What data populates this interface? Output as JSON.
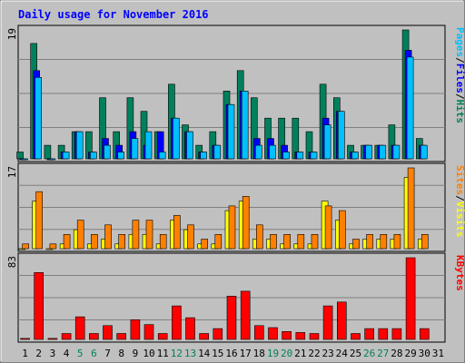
{
  "colors": {
    "background": "#c0c0c0",
    "plot_bg": "#c0c0c0",
    "grid": "#808080",
    "title": "#0000ff",
    "hits": "#00805c",
    "files": "#0000ff",
    "pages": "#00c0ff",
    "visits": "#ffff00",
    "sites": "#ff8000",
    "kbytes": "#ff0000",
    "weekend": "#00805c",
    "weekday": "#000000"
  },
  "chart_data": {
    "type": "bar",
    "title": "Daily usage for November 2016",
    "categories": [
      "1",
      "2",
      "3",
      "4",
      "5",
      "6",
      "7",
      "8",
      "9",
      "10",
      "11",
      "12",
      "13",
      "14",
      "15",
      "16",
      "17",
      "18",
      "19",
      "20",
      "21",
      "22",
      "23",
      "24",
      "25",
      "26",
      "27",
      "28",
      "29",
      "30",
      "31"
    ],
    "weekend_days": [
      "5",
      "6",
      "12",
      "13",
      "19",
      "20",
      "26",
      "27"
    ],
    "panels": [
      {
        "id": "hits",
        "scale_max_label": "19",
        "ylim": [
          0,
          19
        ],
        "legend": [
          {
            "text": "Pages",
            "color": "#00c0ff"
          },
          {
            "text": "/",
            "color": "#000000"
          },
          {
            "text": "Files",
            "color": "#0000ff"
          },
          {
            "text": "/",
            "color": "#000000"
          },
          {
            "text": "Hits",
            "color": "#00805c"
          }
        ],
        "series": [
          {
            "name": "Hits",
            "color": "#00805c",
            "values": [
              1,
              17,
              2,
              2,
              4,
              4,
              9,
              4,
              9,
              7,
              4,
              11,
              5,
              2,
              4,
              10,
              13,
              9,
              6,
              6,
              6,
              4,
              11,
              9,
              2,
              2,
              2,
              5,
              19,
              3,
              null
            ]
          },
          {
            "name": "Files",
            "color": "#0000ff",
            "values": [
              0,
              13,
              0,
              1,
              4,
              1,
              3,
              2,
              4,
              2,
              4,
              6,
              4,
              1,
              2,
              8,
              10,
              3,
              3,
              2,
              1,
              1,
              6,
              7,
              1,
              2,
              2,
              2,
              16,
              2,
              null
            ]
          },
          {
            "name": "Pages",
            "color": "#00c0ff",
            "values": [
              0,
              12,
              0,
              1,
              4,
              1,
              2,
              1,
              3,
              4,
              1,
              6,
              4,
              1,
              2,
              8,
              10,
              2,
              2,
              1,
              1,
              1,
              5,
              7,
              1,
              2,
              2,
              2,
              15,
              2,
              null
            ]
          }
        ]
      },
      {
        "id": "visits",
        "scale_max_label": "17",
        "ylim": [
          0,
          17
        ],
        "legend": [
          {
            "text": "Sites",
            "color": "#ff8000"
          },
          {
            "text": "/",
            "color": "#000000"
          },
          {
            "text": "Visits",
            "color": "#ffff00"
          }
        ],
        "series": [
          {
            "name": "Visits",
            "color": "#ffff00",
            "values": [
              0,
              10,
              0,
              1,
              4,
              1,
              2,
              1,
              3,
              3,
              1,
              6,
              4,
              1,
              1,
              8,
              10,
              2,
              2,
              1,
              1,
              1,
              10,
              6,
              1,
              2,
              2,
              2,
              15,
              2,
              null
            ]
          },
          {
            "name": "Sites",
            "color": "#ff8000",
            "values": [
              1,
              12,
              1,
              3,
              6,
              3,
              5,
              3,
              6,
              6,
              3,
              7,
              5,
              2,
              3,
              9,
              11,
              5,
              3,
              3,
              3,
              3,
              9,
              8,
              2,
              3,
              3,
              3,
              17,
              3,
              null
            ]
          }
        ]
      },
      {
        "id": "kbytes",
        "scale_max_label": "83",
        "ylim": [
          0,
          83
        ],
        "legend": [
          {
            "text": "KBytes",
            "color": "#ff0000"
          }
        ],
        "series": [
          {
            "name": "KBytes",
            "color": "#ff0000",
            "values": [
              1,
              68,
              1,
              6,
              23,
              6,
              14,
              6,
              20,
              15,
              6,
              34,
              22,
              6,
              11,
              44,
              49,
              14,
              12,
              8,
              7,
              6,
              34,
              38,
              6,
              11,
              11,
              11,
              83,
              11,
              null
            ]
          }
        ]
      }
    ]
  }
}
